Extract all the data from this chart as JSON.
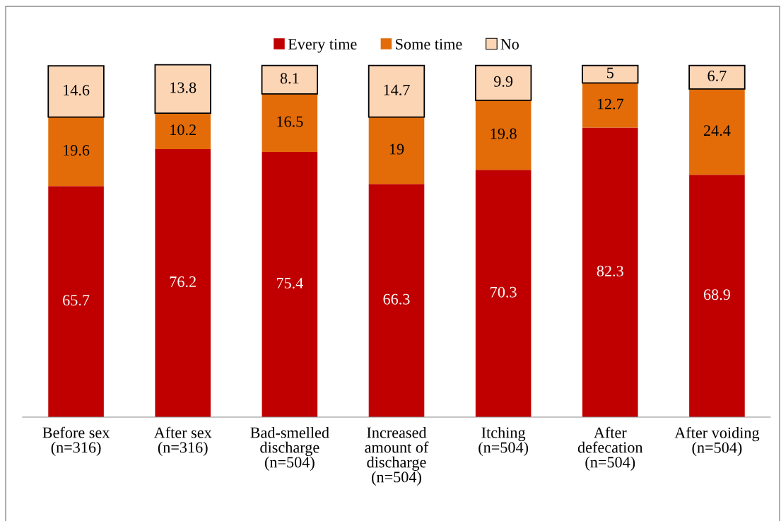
{
  "chart_data": {
    "type": "bar",
    "stacked": true,
    "categories": [
      "Before sex\n(n=316)",
      "After sex\n(n=316)",
      "Bad-smelled\ndischarge\n(n=504)",
      "Increased\namount of\ndischarge\n(n=504)",
      "Itching\n(n=504)",
      "After\ndefecation\n(n=504)",
      "After voiding\n(n=504)"
    ],
    "series": [
      {
        "name": "Every time",
        "color": "#c00000",
        "values": [
          65.7,
          76.2,
          75.4,
          66.3,
          70.3,
          82.3,
          68.9
        ]
      },
      {
        "name": "Some time",
        "color": "#e36c09",
        "values": [
          19.6,
          10.2,
          16.5,
          19,
          19.8,
          12.7,
          24.4
        ]
      },
      {
        "name": "No",
        "color": "#fcd5b5",
        "values": [
          14.6,
          13.8,
          8.1,
          14.7,
          9.9,
          5,
          6.7
        ]
      }
    ],
    "ylim": [
      0,
      117
    ],
    "tick_labels": "x",
    "data_labels": true,
    "legend": "top",
    "grid": false
  }
}
